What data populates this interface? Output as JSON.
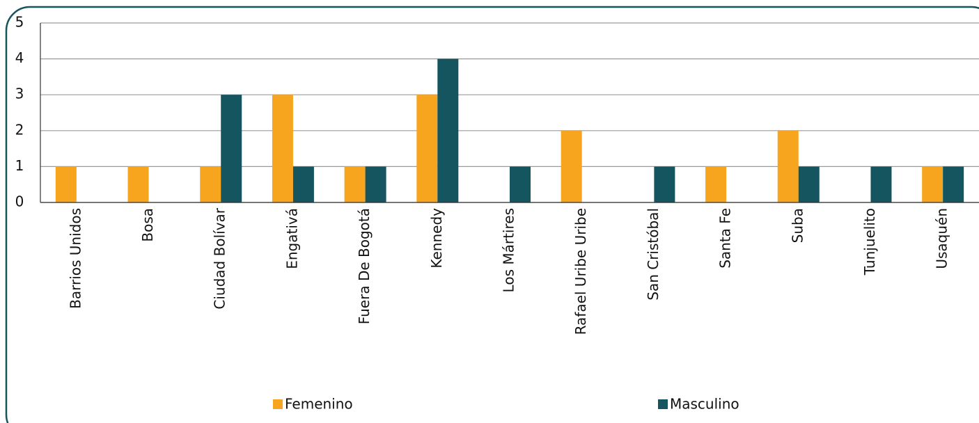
{
  "chart_data": {
    "type": "bar",
    "categories": [
      "Barrios Unidos",
      "Bosa",
      "Ciudad Bolívar",
      "Engativá",
      "Fuera De Bogotá",
      "Kennedy",
      "Los Mártires",
      "Rafael Uribe Uribe",
      "San Cristóbal",
      "Santa Fe",
      "Suba",
      "Tunjuelito",
      "Usaquén"
    ],
    "series": [
      {
        "name": "Femenino",
        "color": "#f7a51f",
        "values": [
          1,
          1,
          1,
          3,
          1,
          3,
          0,
          2,
          0,
          1,
          2,
          0,
          1
        ]
      },
      {
        "name": "Masculino",
        "color": "#14555f",
        "values": [
          0,
          0,
          3,
          1,
          1,
          4,
          1,
          0,
          1,
          0,
          1,
          1,
          1
        ]
      }
    ],
    "ylim": [
      0,
      5
    ],
    "yticks": [
      0,
      1,
      2,
      3,
      4,
      5
    ],
    "grid": true,
    "legend": "bottom"
  }
}
